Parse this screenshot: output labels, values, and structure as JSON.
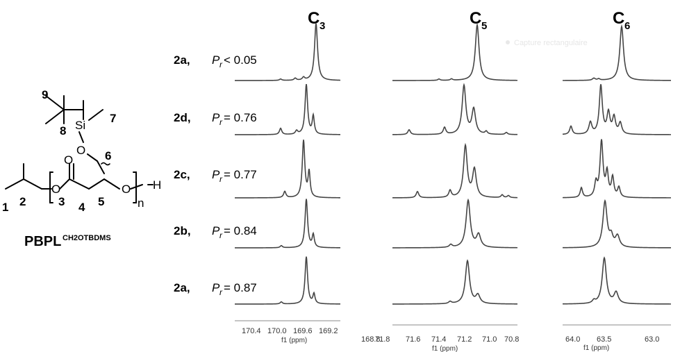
{
  "structure": {
    "name_main": "PBPL",
    "name_sup": "CH2OTBDMS",
    "atoms": {
      "oxygen": "O",
      "silicon": "Si",
      "hydrogen": "H",
      "repeat": "n"
    },
    "numbers": [
      "1",
      "2",
      "3",
      "4",
      "5",
      "6",
      "7",
      "8",
      "9"
    ]
  },
  "panel_titles": [
    {
      "letter": "C",
      "sub": "3"
    },
    {
      "letter": "C",
      "sub": "5"
    },
    {
      "letter": "C",
      "sub": "6"
    }
  ],
  "rows": [
    {
      "sample": "2a,",
      "p_symbol": "P",
      "p_sub": "r",
      "op": "< 0.05"
    },
    {
      "sample": "2d,",
      "p_symbol": "P",
      "p_sub": "r",
      "op": "= 0.76"
    },
    {
      "sample": "2c,",
      "p_symbol": "P",
      "p_sub": "r",
      "op": "= 0.77"
    },
    {
      "sample": "2b,",
      "p_symbol": "P",
      "p_sub": "r",
      "op": "= 0.84"
    },
    {
      "sample": "2a,",
      "p_symbol": "P",
      "p_sub": "r",
      "op": "= 0.87"
    }
  ],
  "axes": [
    {
      "unit": "f1 (ppm)",
      "ticks": [
        "170.4",
        "170.0",
        "169.6",
        "169.2",
        "168.8"
      ]
    },
    {
      "unit": "f1 (ppm)",
      "ticks": [
        "71.8",
        "71.6",
        "71.4",
        "71.2",
        "71.0",
        "70.8"
      ]
    },
    {
      "unit": "f1 (ppm)",
      "ticks": [
        "64.0",
        "63.5",
        "63.0"
      ]
    }
  ],
  "watermark": "Capture rectangulaire",
  "colors": {
    "spectrum": "#444444",
    "axis": "#888888",
    "text": "#000000"
  }
}
